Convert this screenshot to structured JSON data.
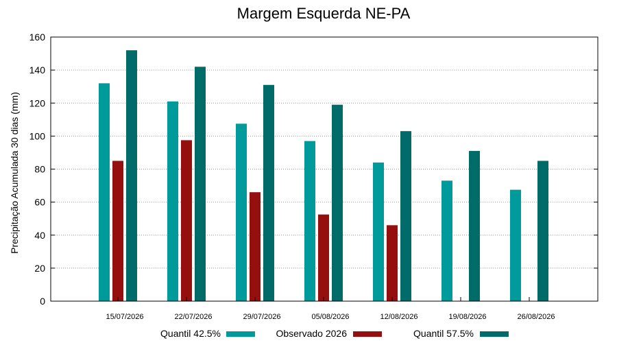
{
  "chart_data": {
    "type": "bar",
    "title": "Margem Esquerda NE-PA",
    "xlabel": "",
    "ylabel": "Precipitação Acumulada 30 dias (mm)",
    "ylim": [
      0,
      160
    ],
    "yticks": [
      0,
      20,
      40,
      60,
      80,
      100,
      120,
      140,
      160
    ],
    "grid": "horizontal dotted",
    "legend_position": "bottom",
    "categories": [
      "15/07/2026",
      "22/07/2026",
      "29/07/2026",
      "05/08/2026",
      "12/08/2026",
      "19/08/2026",
      "26/08/2026"
    ],
    "series": [
      {
        "name": "Quantil 42.5%",
        "color": "#009a9a",
        "values": [
          132,
          121,
          107.5,
          97,
          84,
          73,
          67.5
        ]
      },
      {
        "name": "Observado 2026",
        "color": "#950f0f",
        "values": [
          85,
          97.5,
          66,
          52.5,
          46,
          null,
          null
        ]
      },
      {
        "name": "Quantil 57.5%",
        "color": "#006b68",
        "values": [
          152,
          142,
          131,
          119,
          103,
          91,
          85
        ]
      }
    ]
  }
}
